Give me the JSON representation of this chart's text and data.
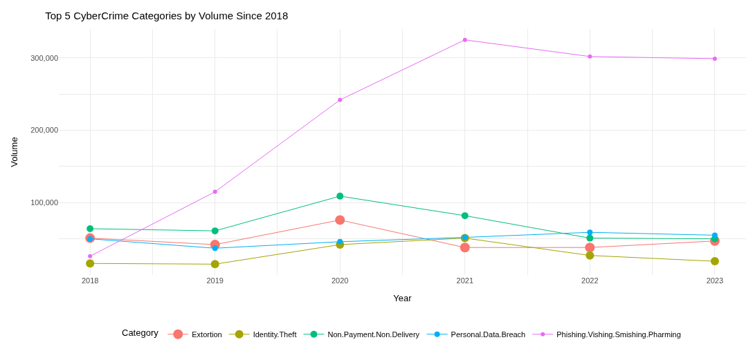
{
  "chart_data": {
    "type": "line",
    "title": "Top 5 CyberCrime Categories by Volume Since 2018",
    "xlabel": "Year",
    "ylabel": "Volume",
    "legend_title": "Category",
    "x": [
      2018,
      2019,
      2020,
      2021,
      2022,
      2023
    ],
    "series": [
      {
        "name": "Extortion",
        "color": "#f8766d",
        "values": [
          51000,
          42000,
          76000,
          38000,
          38000,
          47000
        ]
      },
      {
        "name": "Identity.Theft",
        "color": "#a3a500",
        "values": [
          16000,
          15000,
          42000,
          51000,
          27000,
          19000
        ]
      },
      {
        "name": "Non.Payment.Non.Delivery",
        "color": "#00bf7d",
        "values": [
          64000,
          61000,
          109000,
          82000,
          51000,
          50000
        ]
      },
      {
        "name": "Personal.Data.Breach",
        "color": "#00b0f6",
        "values": [
          50000,
          37000,
          46000,
          52000,
          59000,
          55000
        ]
      },
      {
        "name": "Phishing.Vishing.Smishing.Pharming",
        "color": "#e76bf3",
        "values": [
          26000,
          115000,
          242000,
          325000,
          302000,
          299000
        ]
      }
    ],
    "xlim": [
      2017.75,
      2023.25
    ],
    "xticks": [
      2018,
      {
        "value": 2018.5,
        "label": null
      },
      2019,
      {
        "value": 2019.5,
        "label": null
      },
      2020,
      {
        "value": 2020.5,
        "label": null
      },
      2021,
      {
        "value": 2021.5,
        "label": null
      },
      2022,
      {
        "value": 2022.5,
        "label": null
      },
      2023
    ],
    "ylim": [
      0,
      340000
    ],
    "yticks": [
      {
        "value": 50000,
        "label": null
      },
      {
        "value": 100000,
        "label": "100,000"
      },
      {
        "value": 150000,
        "label": null
      },
      {
        "value": 200000,
        "label": "200,000"
      },
      {
        "value": 250000,
        "label": null
      },
      {
        "value": 300000,
        "label": "300,000"
      }
    ],
    "grid": true,
    "legend": "bottom",
    "marker": "circle",
    "line_style": "solid"
  }
}
